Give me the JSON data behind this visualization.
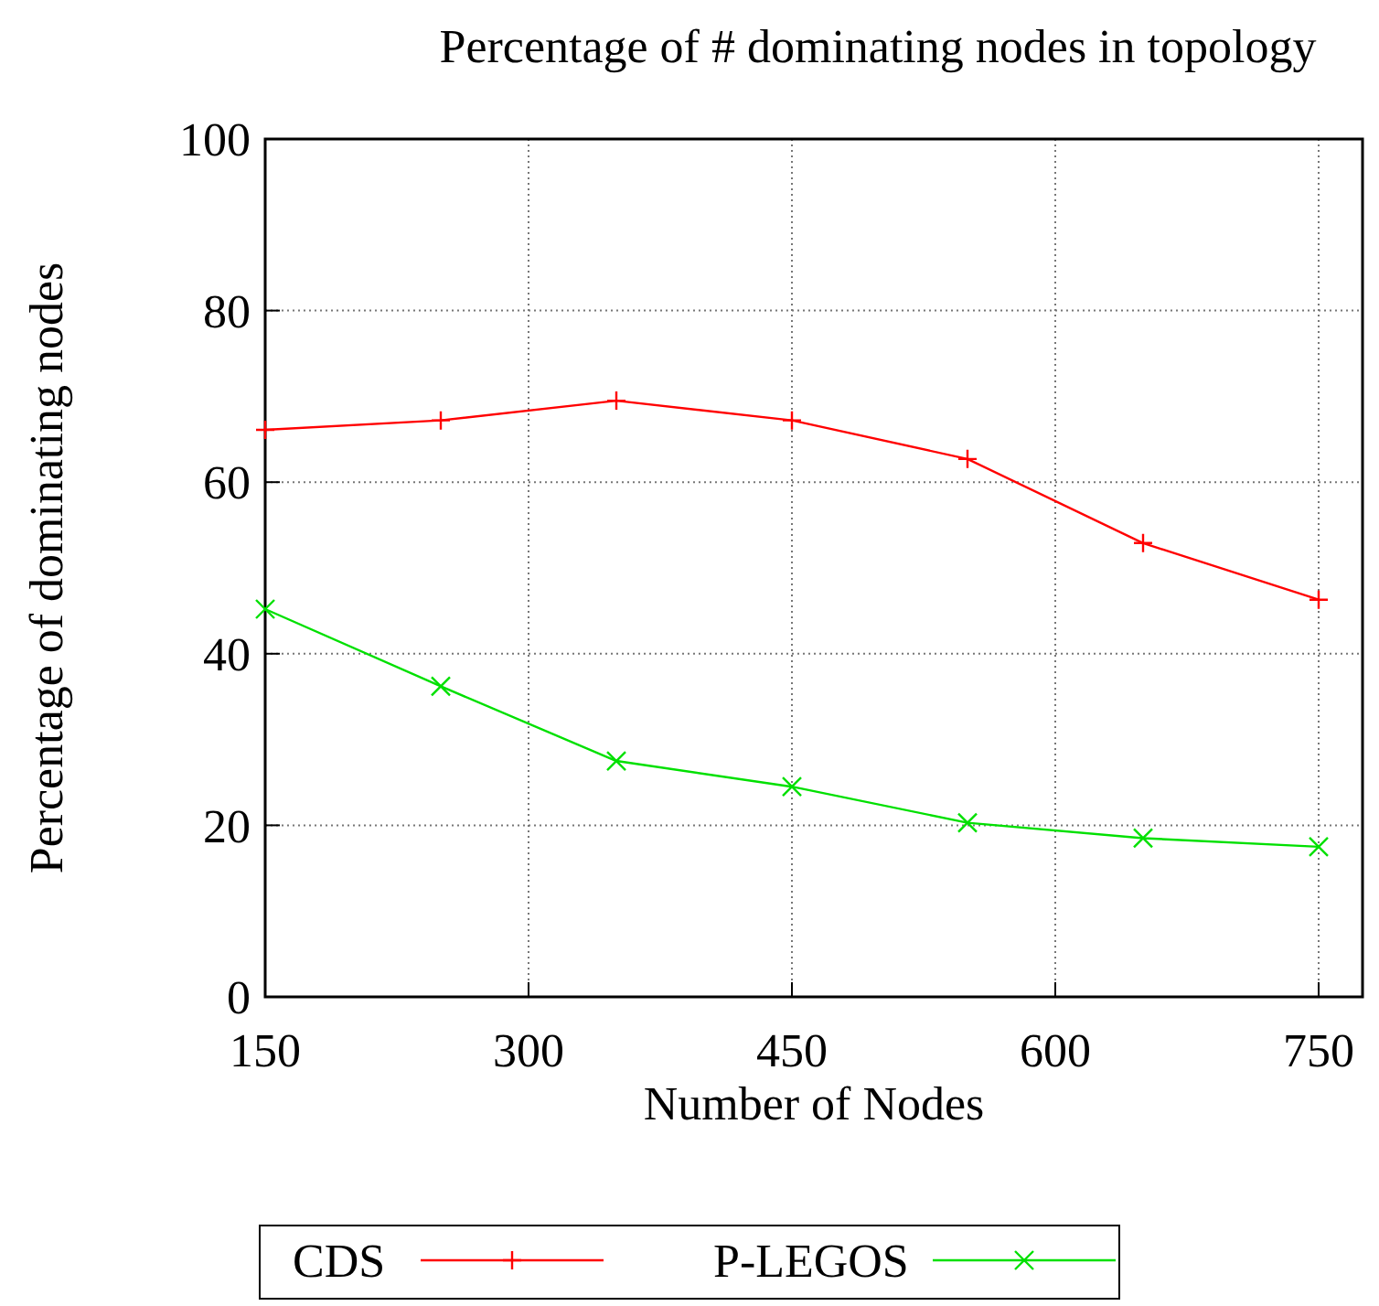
{
  "chart_data": {
    "type": "line",
    "title": "Percentage of # dominating nodes in topology",
    "xlabel": "Number of Nodes",
    "ylabel": "Percentage of dominating nodes",
    "x": [
      150,
      250,
      350,
      450,
      550,
      650,
      750
    ],
    "series": [
      {
        "name": "CDS",
        "color": "#ff0000",
        "marker": "cross",
        "values": [
          66.1,
          67.2,
          69.5,
          67.2,
          62.7,
          52.9,
          46.3
        ]
      },
      {
        "name": "P-LEGOS",
        "color": "#00e000",
        "marker": "x",
        "values": [
          45.2,
          36.2,
          27.5,
          24.5,
          20.3,
          18.5,
          17.5
        ]
      }
    ],
    "xlim": [
      150,
      775
    ],
    "xticks": [
      150,
      300,
      450,
      600,
      750
    ],
    "ylim": [
      0,
      100
    ],
    "yticks": [
      0,
      20,
      40,
      60,
      80,
      100
    ],
    "grid": true,
    "legend": "bottom",
    "line_style": "solid"
  }
}
